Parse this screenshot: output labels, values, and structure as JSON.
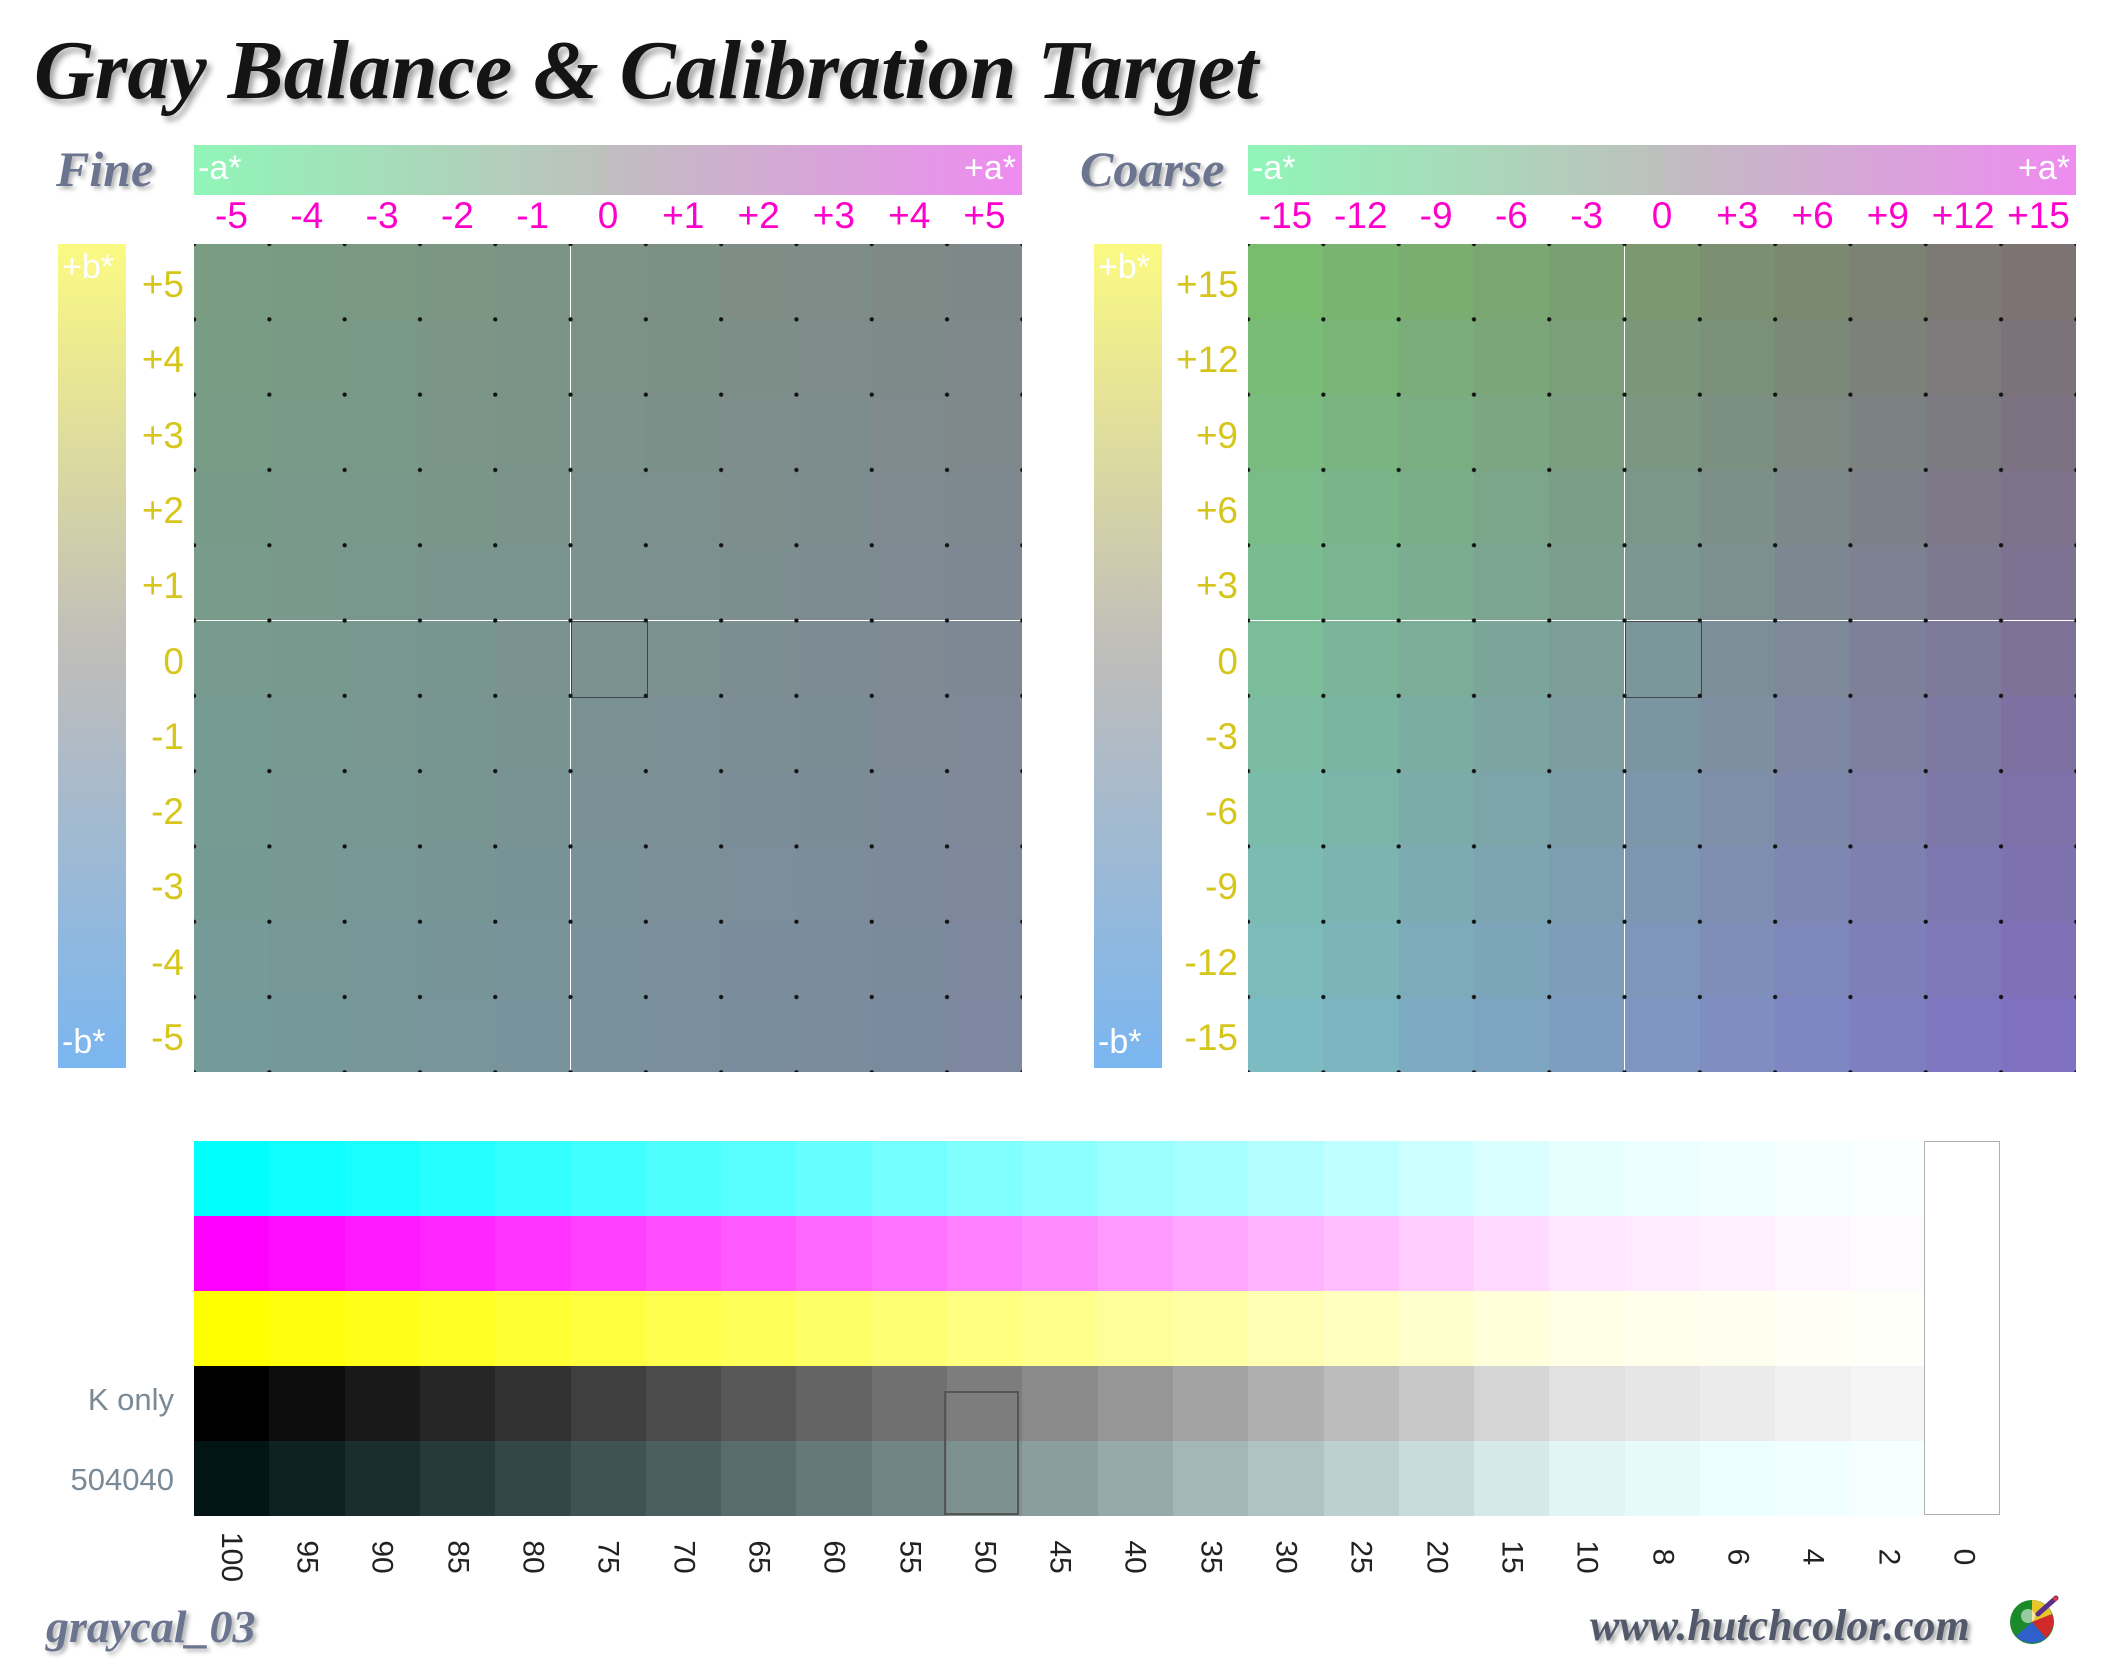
{
  "title": "Gray Balance & Calibration Target",
  "fine": {
    "label": "Fine",
    "a_minus": "-a*",
    "a_plus": "+a*",
    "b_plus": "+b*",
    "b_minus": "-b*",
    "a_ticks": [
      "-5",
      "-4",
      "-3",
      "-2",
      "-1",
      "0",
      "+1",
      "+2",
      "+3",
      "+4",
      "+5"
    ],
    "b_ticks": [
      "+5",
      "+4",
      "+3",
      "+2",
      "+1",
      "0",
      "-1",
      "-2",
      "-3",
      "-4",
      "-5"
    ]
  },
  "coarse": {
    "label": "Coarse",
    "a_minus": "-a*",
    "a_plus": "+a*",
    "b_plus": "+b*",
    "b_minus": "-b*",
    "a_ticks": [
      "-15",
      "-12",
      "-9",
      "-6",
      "-3",
      "0",
      "+3",
      "+6",
      "+9",
      "+12",
      "+15"
    ],
    "b_ticks": [
      "+15",
      "+12",
      "+9",
      "+6",
      "+3",
      "0",
      "-3",
      "-6",
      "-9",
      "-12",
      "-15"
    ]
  },
  "ramp": {
    "row_labels": [
      "K only",
      "504040"
    ],
    "percentages": [
      "100",
      "95",
      "90",
      "85",
      "80",
      "75",
      "70",
      "65",
      "60",
      "55",
      "50",
      "45",
      "40",
      "35",
      "30",
      "25",
      "20",
      "15",
      "10",
      "8",
      "6",
      "4",
      "2",
      "0"
    ]
  },
  "footer": {
    "file_name": "graycal_03",
    "website": "www.hutchcolor.com"
  },
  "colors": {
    "magenta_labels": "#ff00cc",
    "yellow_labels": "#d6c61c",
    "fine_corners": {
      "tl": "#7a9c82",
      "tr": "#7f8888",
      "bl": "#749a99",
      "br": "#7d88a0"
    },
    "coarse_corners": {
      "tl": "#79bc70",
      "tr": "#7c7372",
      "bl": "#7cbbc2",
      "br": "#7f70c0"
    }
  }
}
